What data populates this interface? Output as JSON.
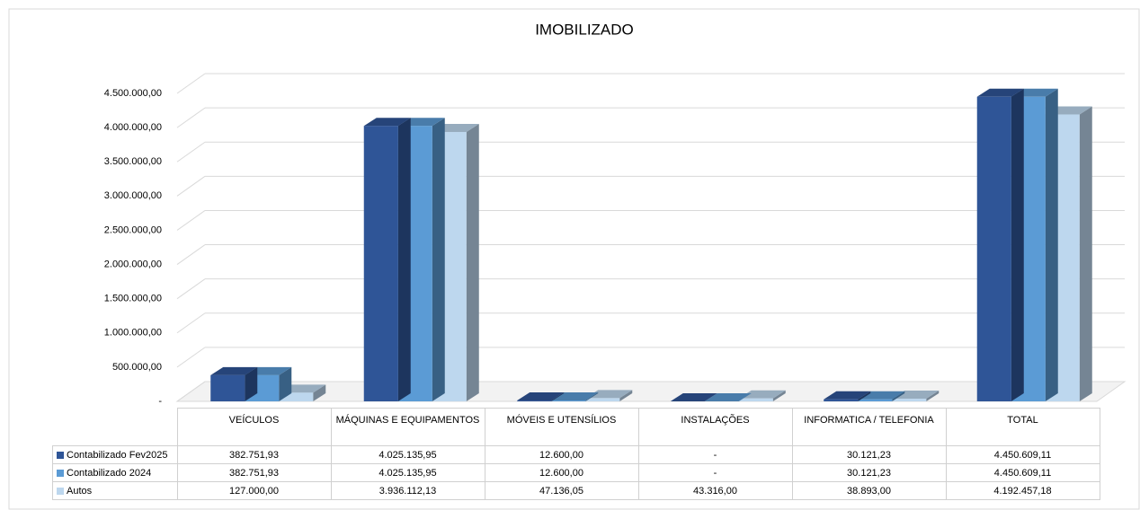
{
  "chart_data": {
    "type": "bar3d",
    "title": "IMOBILIZADO",
    "categories": [
      "VEÍCULOS",
      "MÁQUINAS E EQUIPAMENTOS",
      "MÓVEIS E UTENSÍLIOS",
      "INSTALAÇÕES",
      "INFORMATICA / TELEFONIA",
      "TOTAL"
    ],
    "series": [
      {
        "name": "Contabilizado Fev2025",
        "color": "#2f5597",
        "values": [
          382751.93,
          4025135.95,
          12600,
          0,
          30121.23,
          4450609.11
        ],
        "value_labels": [
          "382.751,93",
          "4.025.135,95",
          "12.600,00",
          "-",
          "30.121,23",
          "4.450.609,11"
        ]
      },
      {
        "name": "Contabilizado 2024",
        "color": "#5b9bd5",
        "values": [
          382751.93,
          4025135.95,
          12600,
          0,
          30121.23,
          4450609.11
        ],
        "value_labels": [
          "382.751,93",
          "4.025.135,95",
          "12.600,00",
          "-",
          "30.121,23",
          "4.450.609,11"
        ]
      },
      {
        "name": "Autos",
        "color": "#bdd7ee",
        "values": [
          127000,
          3936112.13,
          47136.05,
          43316,
          38893,
          4192457.18
        ],
        "value_labels": [
          "127.000,00",
          "3.936.112,13",
          "47.136,05",
          "43.316,00",
          "38.893,00",
          "4.192.457,18"
        ]
      }
    ],
    "ylim": [
      0,
      4500000
    ],
    "yticks": [
      {
        "value": 0,
        "label": "-"
      },
      {
        "value": 500000,
        "label": "500.000,00"
      },
      {
        "value": 1000000,
        "label": "1.000.000,00"
      },
      {
        "value": 1500000,
        "label": "1.500.000,00"
      },
      {
        "value": 2000000,
        "label": "2.000.000,00"
      },
      {
        "value": 2500000,
        "label": "2.500.000,00"
      },
      {
        "value": 3000000,
        "label": "3.000.000,00"
      },
      {
        "value": 3500000,
        "label": "3.500.000,00"
      },
      {
        "value": 4000000,
        "label": "4.000.000,00"
      },
      {
        "value": 4500000,
        "label": "4.500.000,00"
      }
    ],
    "grid": true
  }
}
